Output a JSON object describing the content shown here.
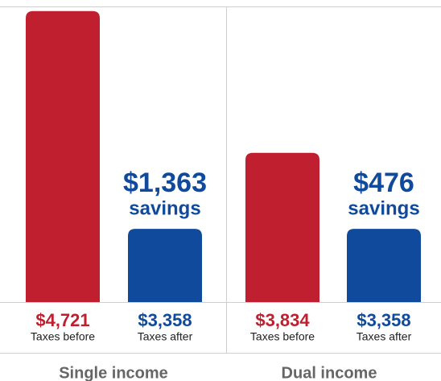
{
  "chart_data": [
    {
      "type": "bar",
      "title": "Single income",
      "categories": [
        "Taxes before",
        "Taxes after"
      ],
      "values": [
        4721,
        3358
      ],
      "value_labels": [
        "$4,721",
        "$3,358"
      ],
      "colors": [
        "#c01f2f",
        "#0f4a9c"
      ],
      "annotation": "$1,363",
      "annotation_subtitle": "savings",
      "ylim": [
        2900,
        4750
      ]
    },
    {
      "type": "bar",
      "title": "Dual income",
      "categories": [
        "Taxes before",
        "Taxes after"
      ],
      "values": [
        3834,
        3358
      ],
      "value_labels": [
        "$3,834",
        "$3,358"
      ],
      "colors": [
        "#c01f2f",
        "#0f4a9c"
      ],
      "annotation": "$476",
      "annotation_subtitle": "savings",
      "ylim": [
        2900,
        4750
      ]
    }
  ]
}
